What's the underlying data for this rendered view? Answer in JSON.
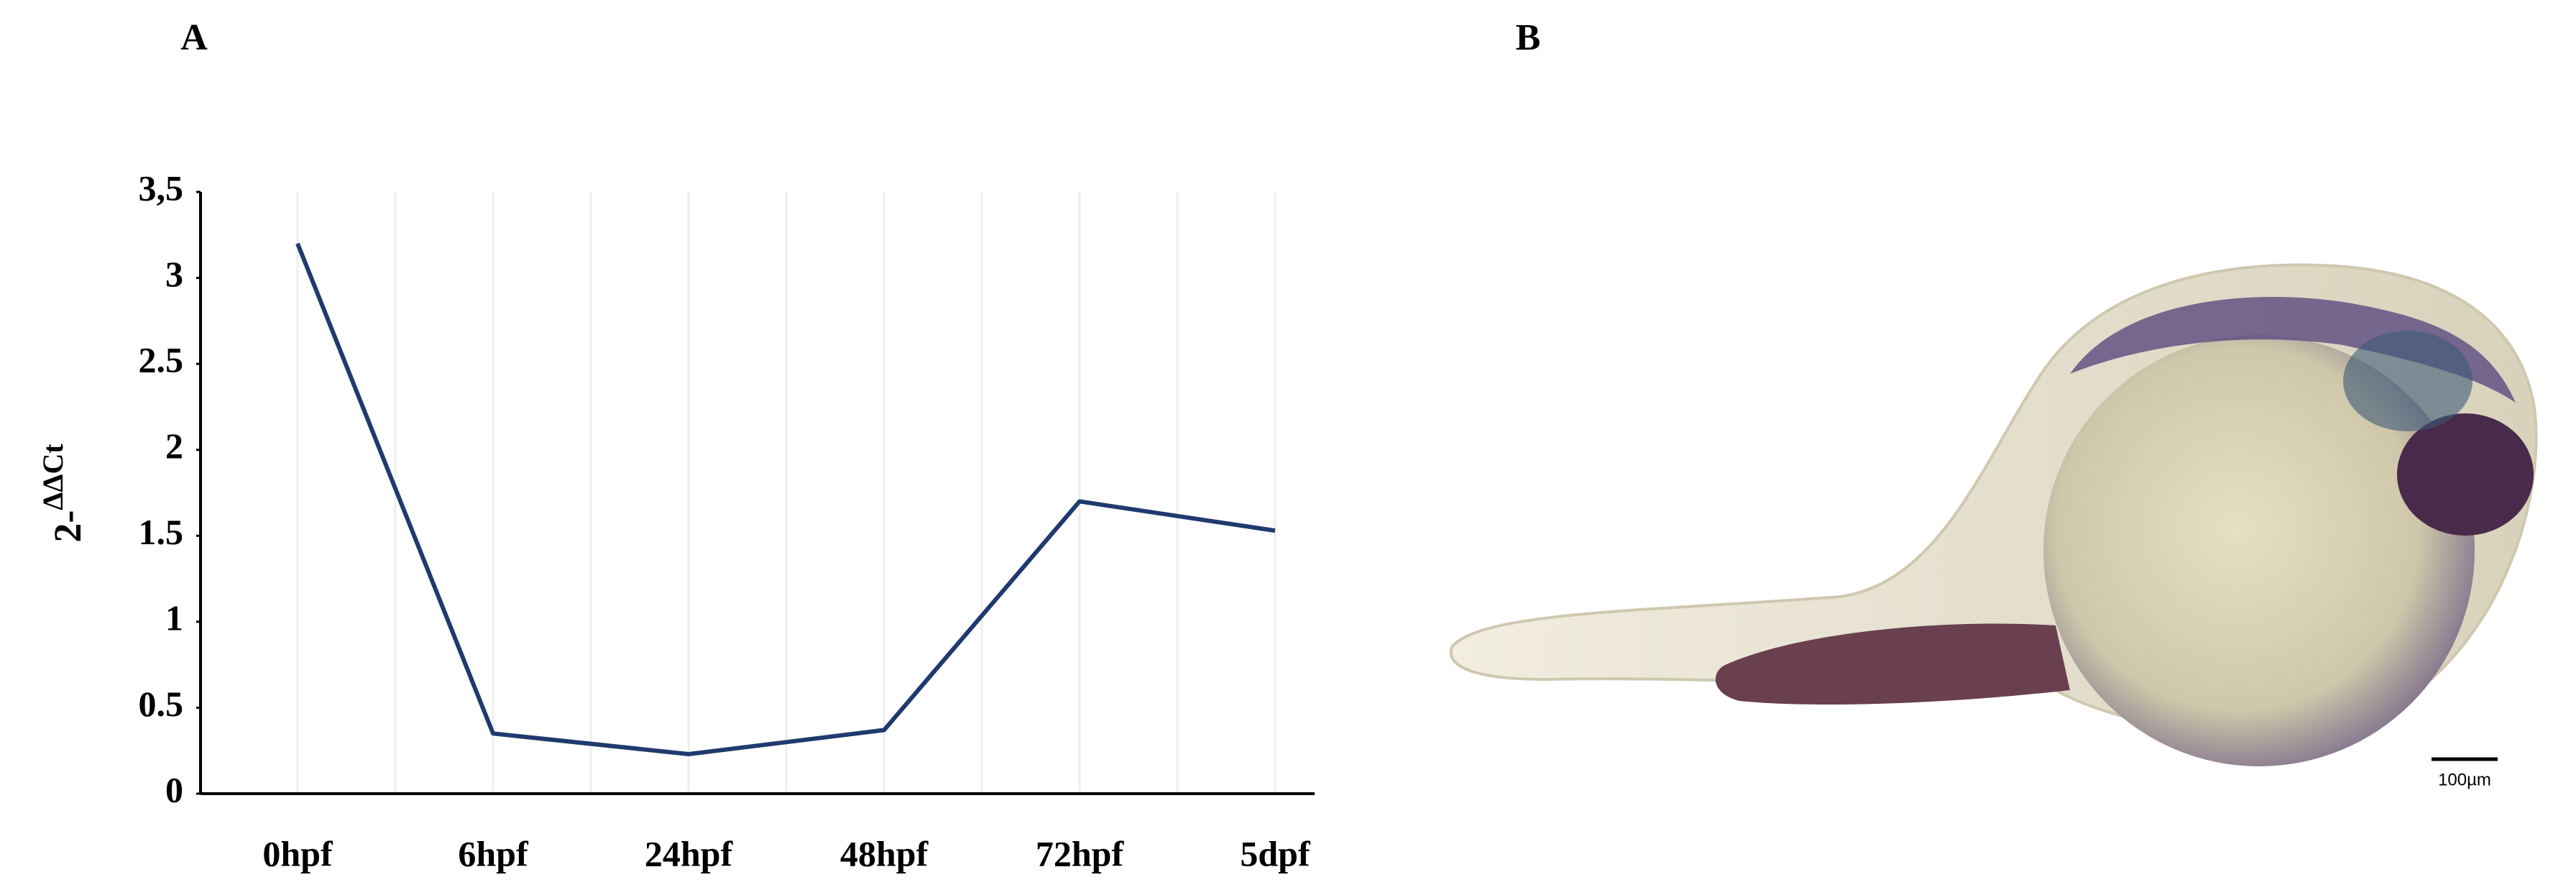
{
  "chart_data": {
    "type": "line",
    "categories": [
      "0hpf",
      "6hpf",
      "24hpf",
      "48hpf",
      "72hpf",
      "5dpf"
    ],
    "series": [
      {
        "color": "#1f3a6e",
        "values": [
          3.2,
          0.35,
          0.23,
          0.37,
          1.7,
          1.53
        ]
      }
    ],
    "y_label_base": "2-",
    "y_label_exp": "ΔΔCt",
    "ylim": [
      0,
      3.5
    ],
    "yticks": [
      0,
      0.5,
      1,
      1.5,
      2,
      2.5,
      3,
      {
        "value": 3.5,
        "label": "3,5"
      }
    ],
    "grid": true
  },
  "panel_labels": [
    "A",
    "B"
  ],
  "image": {
    "scale_bar_label": "100µm"
  }
}
